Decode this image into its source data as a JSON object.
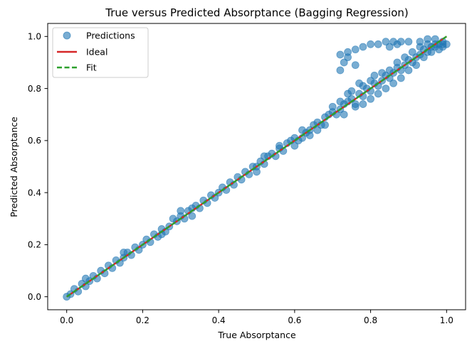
{
  "chart_data": {
    "type": "scatter",
    "title": "True versus Predicted Absorptance (Bagging Regression)",
    "xlabel": "True Absorptance",
    "ylabel": "Predicted Absorptance",
    "xlim": [
      -0.05,
      1.05
    ],
    "ylim": [
      -0.05,
      1.05
    ],
    "xticks": [
      0.0,
      0.2,
      0.4,
      0.6,
      0.8,
      1.0
    ],
    "yticks": [
      0.0,
      0.2,
      0.4,
      0.6,
      0.8,
      1.0
    ],
    "xtick_labels": [
      "0.0",
      "0.2",
      "0.4",
      "0.6",
      "0.8",
      "1.0"
    ],
    "ytick_labels": [
      "0.0",
      "0.2",
      "0.4",
      "0.6",
      "0.8",
      "1.0"
    ],
    "grid": false,
    "legend": {
      "placement": "top-left",
      "entries": [
        "Predictions",
        "Ideal",
        "Fit"
      ]
    },
    "series": [
      {
        "name": "Predictions",
        "kind": "scatter",
        "color": "#1f77b4",
        "alpha": 0.6,
        "points": [
          [
            0.0,
            0.0
          ],
          [
            0.01,
            0.01
          ],
          [
            0.02,
            0.03
          ],
          [
            0.03,
            0.02
          ],
          [
            0.04,
            0.05
          ],
          [
            0.05,
            0.04
          ],
          [
            0.05,
            0.07
          ],
          [
            0.06,
            0.06
          ],
          [
            0.07,
            0.08
          ],
          [
            0.08,
            0.07
          ],
          [
            0.09,
            0.1
          ],
          [
            0.1,
            0.09
          ],
          [
            0.11,
            0.12
          ],
          [
            0.12,
            0.11
          ],
          [
            0.13,
            0.14
          ],
          [
            0.14,
            0.13
          ],
          [
            0.15,
            0.15
          ],
          [
            0.16,
            0.17
          ],
          [
            0.17,
            0.16
          ],
          [
            0.18,
            0.19
          ],
          [
            0.19,
            0.18
          ],
          [
            0.2,
            0.2
          ],
          [
            0.21,
            0.22
          ],
          [
            0.22,
            0.21
          ],
          [
            0.23,
            0.24
          ],
          [
            0.24,
            0.23
          ],
          [
            0.25,
            0.26
          ],
          [
            0.26,
            0.25
          ],
          [
            0.27,
            0.27
          ],
          [
            0.28,
            0.3
          ],
          [
            0.29,
            0.29
          ],
          [
            0.3,
            0.31
          ],
          [
            0.31,
            0.3
          ],
          [
            0.32,
            0.33
          ],
          [
            0.33,
            0.34
          ],
          [
            0.34,
            0.35
          ],
          [
            0.35,
            0.34
          ],
          [
            0.36,
            0.37
          ],
          [
            0.37,
            0.36
          ],
          [
            0.38,
            0.39
          ],
          [
            0.39,
            0.38
          ],
          [
            0.4,
            0.4
          ],
          [
            0.41,
            0.42
          ],
          [
            0.42,
            0.41
          ],
          [
            0.43,
            0.44
          ],
          [
            0.44,
            0.43
          ],
          [
            0.45,
            0.46
          ],
          [
            0.46,
            0.45
          ],
          [
            0.47,
            0.48
          ],
          [
            0.48,
            0.47
          ],
          [
            0.49,
            0.5
          ],
          [
            0.5,
            0.5
          ],
          [
            0.51,
            0.52
          ],
          [
            0.52,
            0.51
          ],
          [
            0.53,
            0.54
          ],
          [
            0.54,
            0.55
          ],
          [
            0.55,
            0.54
          ],
          [
            0.56,
            0.57
          ],
          [
            0.57,
            0.56
          ],
          [
            0.58,
            0.59
          ],
          [
            0.59,
            0.6
          ],
          [
            0.6,
            0.61
          ],
          [
            0.61,
            0.6
          ],
          [
            0.62,
            0.61
          ],
          [
            0.63,
            0.63
          ],
          [
            0.64,
            0.64
          ],
          [
            0.65,
            0.66
          ],
          [
            0.66,
            0.67
          ],
          [
            0.67,
            0.66
          ],
          [
            0.68,
            0.69
          ],
          [
            0.69,
            0.7
          ],
          [
            0.7,
            0.71
          ],
          [
            0.71,
            0.7
          ],
          [
            0.72,
            0.72
          ],
          [
            0.73,
            0.74
          ],
          [
            0.74,
            0.75
          ],
          [
            0.75,
            0.76
          ],
          [
            0.76,
            0.74
          ],
          [
            0.77,
            0.78
          ],
          [
            0.78,
            0.77
          ],
          [
            0.79,
            0.8
          ],
          [
            0.8,
            0.79
          ],
          [
            0.81,
            0.82
          ],
          [
            0.82,
            0.81
          ],
          [
            0.83,
            0.83
          ],
          [
            0.84,
            0.85
          ],
          [
            0.85,
            0.84
          ],
          [
            0.86,
            0.86
          ],
          [
            0.87,
            0.88
          ],
          [
            0.88,
            0.87
          ],
          [
            0.89,
            0.89
          ],
          [
            0.9,
            0.91
          ],
          [
            0.91,
            0.9
          ],
          [
            0.92,
            0.92
          ],
          [
            0.93,
            0.93
          ],
          [
            0.94,
            0.95
          ],
          [
            0.95,
            0.94
          ],
          [
            0.96,
            0.96
          ],
          [
            0.97,
            0.97
          ],
          [
            0.98,
            0.97
          ],
          [
            0.99,
            0.98
          ],
          [
            1.0,
            0.97
          ],
          [
            0.15,
            0.17
          ],
          [
            0.25,
            0.24
          ],
          [
            0.3,
            0.33
          ],
          [
            0.33,
            0.31
          ],
          [
            0.5,
            0.48
          ],
          [
            0.52,
            0.54
          ],
          [
            0.56,
            0.58
          ],
          [
            0.6,
            0.58
          ],
          [
            0.62,
            0.64
          ],
          [
            0.64,
            0.62
          ],
          [
            0.66,
            0.64
          ],
          [
            0.68,
            0.66
          ],
          [
            0.7,
            0.73
          ],
          [
            0.72,
            0.75
          ],
          [
            0.73,
            0.7
          ],
          [
            0.74,
            0.78
          ],
          [
            0.75,
            0.79
          ],
          [
            0.76,
            0.73
          ],
          [
            0.77,
            0.82
          ],
          [
            0.78,
            0.81
          ],
          [
            0.78,
            0.74
          ],
          [
            0.8,
            0.83
          ],
          [
            0.8,
            0.76
          ],
          [
            0.81,
            0.85
          ],
          [
            0.82,
            0.78
          ],
          [
            0.83,
            0.86
          ],
          [
            0.84,
            0.8
          ],
          [
            0.85,
            0.87
          ],
          [
            0.86,
            0.82
          ],
          [
            0.87,
            0.9
          ],
          [
            0.88,
            0.84
          ],
          [
            0.89,
            0.92
          ],
          [
            0.9,
            0.87
          ],
          [
            0.91,
            0.94
          ],
          [
            0.92,
            0.89
          ],
          [
            0.93,
            0.96
          ],
          [
            0.94,
            0.92
          ],
          [
            0.95,
            0.97
          ],
          [
            0.96,
            0.94
          ],
          [
            0.97,
            0.96
          ],
          [
            0.98,
            0.95
          ],
          [
            0.99,
            0.97
          ],
          [
            0.72,
            0.93
          ],
          [
            0.74,
            0.94
          ],
          [
            0.76,
            0.95
          ],
          [
            0.78,
            0.96
          ],
          [
            0.8,
            0.97
          ],
          [
            0.82,
            0.97
          ],
          [
            0.84,
            0.98
          ],
          [
            0.86,
            0.98
          ],
          [
            0.88,
            0.98
          ],
          [
            0.9,
            0.98
          ],
          [
            0.72,
            0.87
          ],
          [
            0.73,
            0.9
          ],
          [
            0.74,
            0.92
          ],
          [
            0.76,
            0.89
          ],
          [
            0.85,
            0.96
          ],
          [
            0.87,
            0.97
          ],
          [
            0.93,
            0.98
          ],
          [
            0.95,
            0.99
          ],
          [
            0.97,
            0.99
          ],
          [
            0.99,
            0.96
          ]
        ]
      },
      {
        "name": "Ideal",
        "kind": "line",
        "color": "#d62728",
        "style": "solid",
        "x": [
          0.0,
          1.0
        ],
        "y": [
          0.0,
          1.0
        ]
      },
      {
        "name": "Fit",
        "kind": "line",
        "color": "#2ca02c",
        "style": "dashed",
        "x": [
          0.0,
          1.0
        ],
        "y": [
          0.0,
          1.0
        ]
      }
    ]
  }
}
